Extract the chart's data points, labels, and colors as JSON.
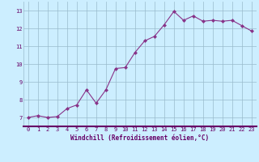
{
  "x": [
    0,
    1,
    2,
    3,
    4,
    5,
    6,
    7,
    8,
    9,
    10,
    11,
    12,
    13,
    14,
    15,
    16,
    17,
    18,
    19,
    20,
    21,
    22,
    23
  ],
  "y": [
    7.0,
    7.1,
    7.0,
    7.05,
    7.5,
    7.7,
    8.55,
    7.8,
    8.55,
    9.75,
    9.8,
    10.65,
    11.3,
    11.55,
    12.2,
    12.95,
    12.45,
    12.7,
    12.4,
    12.45,
    12.4,
    12.45,
    12.15,
    11.85
  ],
  "line_color": "#883388",
  "marker": "D",
  "markersize": 2.0,
  "linewidth": 0.8,
  "xlim": [
    -0.5,
    23.5
  ],
  "ylim": [
    6.5,
    13.5
  ],
  "yticks": [
    7,
    8,
    9,
    10,
    11,
    12,
    13
  ],
  "xticks": [
    0,
    1,
    2,
    3,
    4,
    5,
    6,
    7,
    8,
    9,
    10,
    11,
    12,
    13,
    14,
    15,
    16,
    17,
    18,
    19,
    20,
    21,
    22,
    23
  ],
  "xlabel": "Windchill (Refroidissement éolien,°C)",
  "background_color": "#cceeff",
  "grid_color": "#99bbcc",
  "tick_color": "#660066",
  "label_color": "#660066",
  "xlabel_fontsize": 5.5,
  "tick_fontsize": 5.0,
  "axisline_color": "#660066"
}
